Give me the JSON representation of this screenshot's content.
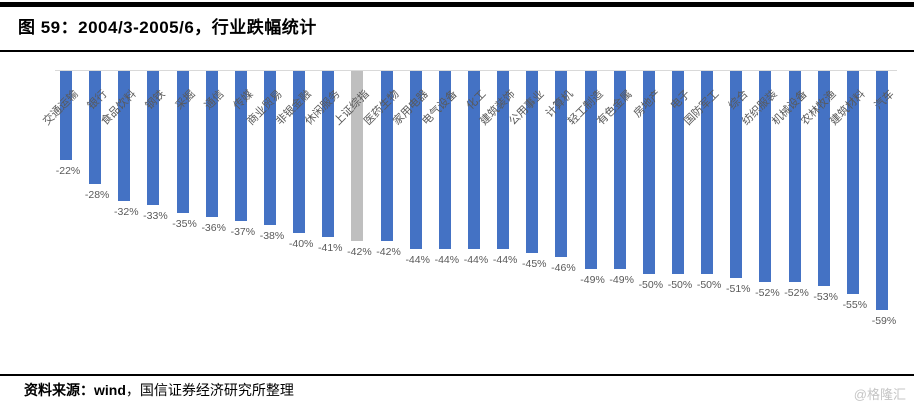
{
  "header": {
    "title": "图 59：2004/3-2005/6，行业跌幅统计"
  },
  "footer": {
    "source_label": "资料来源：",
    "source_wind": "wind",
    "source_rest": "，国信证券经济研究所整理"
  },
  "watermark": "@格隆汇",
  "colors": {
    "bar": "#4472c4",
    "highlight_bar": "#bfbfbf",
    "axis_line": "#d9d9d9",
    "label_text": "#595959",
    "rule": "#000000",
    "watermark": "#c5c5c5"
  },
  "chart_data": {
    "type": "bar",
    "orientation": "vertical-negative",
    "title": "2004/3-2005/6，行业跌幅统计",
    "xlabel": "",
    "ylabel": "",
    "ylim": [
      -60,
      0
    ],
    "grid": false,
    "legend": false,
    "data_labels": true,
    "value_suffix": "%",
    "highlight_index": 10,
    "highlight_category": "上证综指",
    "categories": [
      "交通运输",
      "银行",
      "食品饮料",
      "钢铁",
      "采掘",
      "通信",
      "传媒",
      "商业贸易",
      "非银金融",
      "休闲服务",
      "上证综指",
      "医药生物",
      "家用电器",
      "电气设备",
      "化工",
      "建筑装饰",
      "公用事业",
      "计算机",
      "轻工制造",
      "有色金属",
      "房地产",
      "电子",
      "国防军工",
      "综合",
      "纺织服装",
      "机械设备",
      "农林牧渔",
      "建筑材料",
      "汽车"
    ],
    "values": [
      -22,
      -28,
      -32,
      -33,
      -35,
      -36,
      -37,
      -38,
      -40,
      -41,
      -42,
      -42,
      -44,
      -44,
      -44,
      -44,
      -45,
      -46,
      -49,
      -49,
      -50,
      -50,
      -50,
      -51,
      -52,
      -52,
      -53,
      -55,
      -59
    ]
  }
}
